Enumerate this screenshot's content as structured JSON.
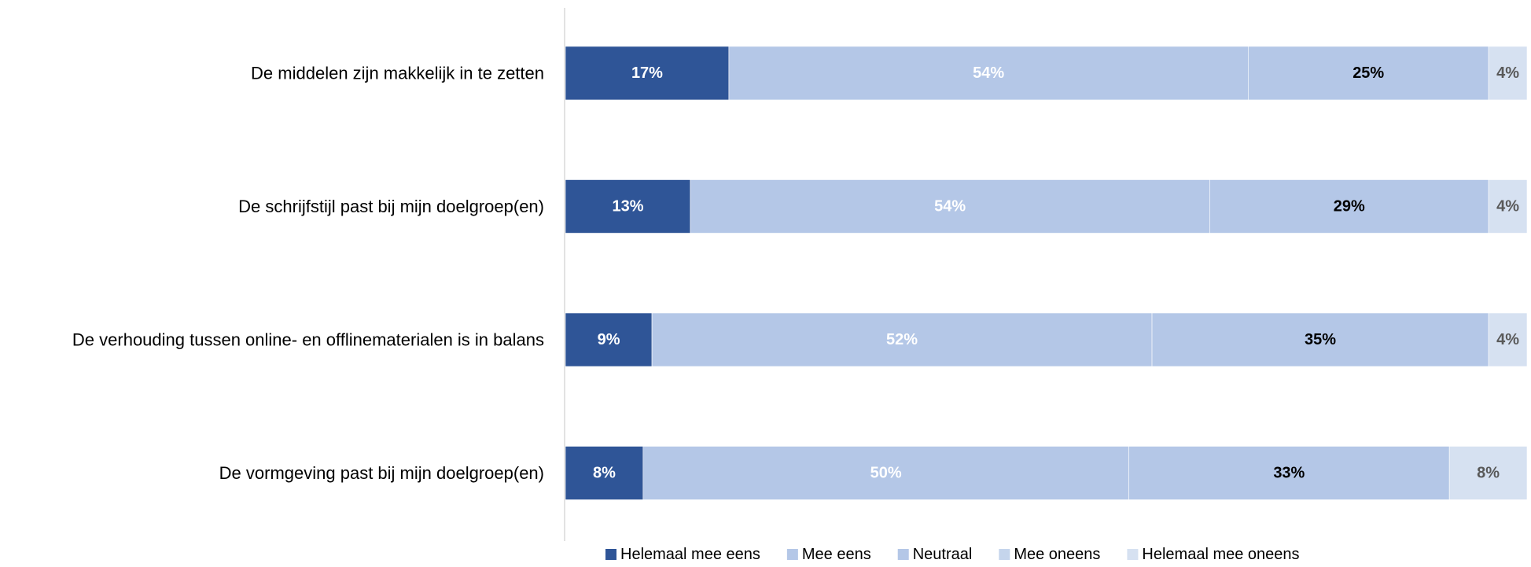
{
  "chart_data": {
    "type": "bar",
    "orientation": "horizontal",
    "stacked": true,
    "percent_stacked": true,
    "grid": false,
    "legend_position": "bottom",
    "categories": [
      "De middelen zijn makkelijk in te zetten",
      "De schrijfstijl past bij mijn doelgroep(en)",
      "De verhouding tussen online- en offlinematerialen is in balans",
      "De vormgeving past bij mijn doelgroep(en)"
    ],
    "series": [
      {
        "name": "Helemaal mee eens",
        "color": "#2F5597",
        "label_color": "#ffffff",
        "values": [
          17,
          13,
          9,
          8
        ],
        "labels": [
          "17%",
          "13%",
          "9%",
          "8%"
        ]
      },
      {
        "name": "Mee eens",
        "color": "#B4C7E7",
        "label_color": "#ffffff",
        "values": [
          54,
          54,
          52,
          50
        ],
        "labels": [
          "54%",
          "54%",
          "52%",
          "50%"
        ]
      },
      {
        "name": "Neutraal",
        "color": "#B4C7E7",
        "label_color": "#000000",
        "values": [
          25,
          29,
          35,
          33
        ],
        "labels": [
          "25%",
          "29%",
          "35%",
          "33%"
        ]
      },
      {
        "name": "Mee oneens",
        "color": "#C5D5EC",
        "label_color": "#000000",
        "values": [
          0,
          0,
          0,
          0
        ],
        "labels": [
          "",
          "",
          "",
          ""
        ]
      },
      {
        "name": "Helemaal mee oneens",
        "color": "#D6E1F1",
        "label_color": "#595959",
        "values": [
          4,
          4,
          4,
          8
        ],
        "labels": [
          "4%",
          "4%",
          "4%",
          "8%"
        ]
      }
    ]
  }
}
